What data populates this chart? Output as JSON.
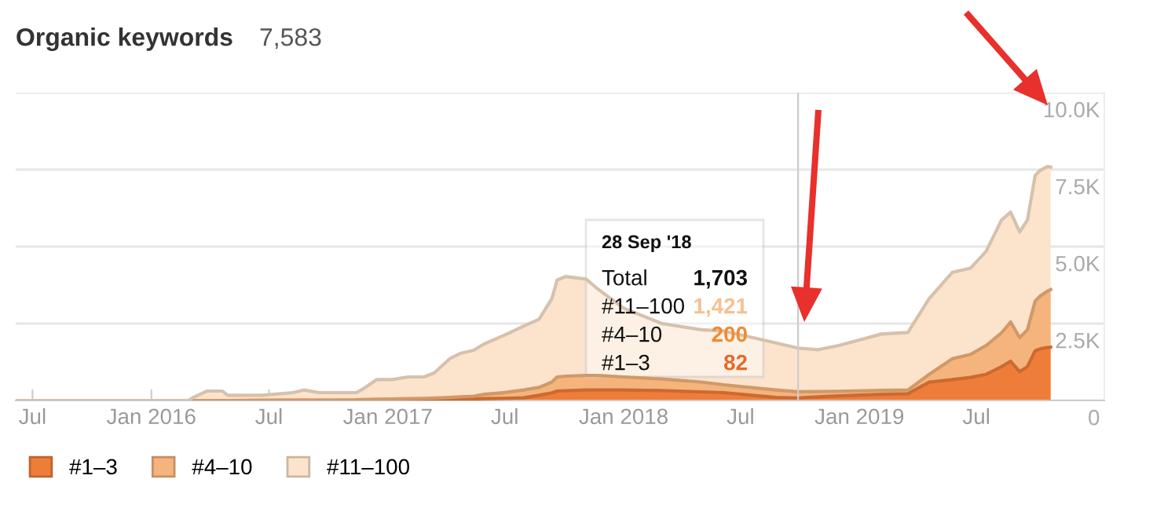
{
  "chart_data": {
    "type": "area",
    "stacked": true,
    "title": "Organic keywords",
    "subtitle": "7,583",
    "x": [
      "2015-06-05",
      "2016-02-27",
      "2016-03-06",
      "2016-03-27",
      "2016-04-20",
      "2016-04-28",
      "2016-06-20",
      "2016-08-07",
      "2016-08-24",
      "2016-09-17",
      "2016-11-13",
      "2016-11-21",
      "2016-12-15",
      "2017-01-08",
      "2017-02-02",
      "2017-02-26",
      "2017-03-14",
      "2017-04-07",
      "2017-04-23",
      "2017-05-14",
      "2017-05-30",
      "2017-07-01",
      "2017-07-30",
      "2017-08-23",
      "2017-09-12",
      "2017-09-20",
      "2017-10-03",
      "2017-11-04",
      "2017-11-20",
      "2018-01-01",
      "2018-03-01",
      "2018-05-01",
      "2018-06-05",
      "2018-08-25",
      "2018-09-28",
      "2018-10-29",
      "2018-11-30",
      "2019-02-04",
      "2019-03-17",
      "2019-04-19",
      "2019-05-25",
      "2019-06-22",
      "2019-07-16",
      "2019-08-09",
      "2019-08-23",
      "2019-09-06",
      "2019-09-18",
      "2019-09-30",
      "2019-10-08",
      "2019-10-19",
      "2019-10-24"
    ],
    "series": [
      {
        "name": "#1–3",
        "color": "#ef7d3a",
        "values": [
          0,
          0,
          0,
          0,
          0,
          0,
          0,
          0,
          0,
          0,
          5,
          5,
          10,
          10,
          15,
          20,
          25,
          30,
          40,
          50,
          60,
          70,
          85,
          170,
          250,
          306,
          320,
          340,
          340,
          340,
          320,
          280,
          255,
          100,
          82,
          120,
          150,
          200,
          221,
          595,
          680,
          750,
          850,
          1100,
          1275,
          935,
          1100,
          1615,
          1680,
          1720,
          1734
        ]
      },
      {
        "name": "#4–10",
        "color": "#f5b47c",
        "values": [
          0,
          0,
          0,
          0,
          0,
          0,
          10,
          15,
          15,
          20,
          20,
          25,
          30,
          40,
          45,
          50,
          55,
          70,
          80,
          90,
          140,
          190,
          255,
          255,
          350,
          459,
          470,
          476,
          476,
          425,
          380,
          320,
          255,
          240,
          200,
          169,
          150,
          130,
          119,
          255,
          680,
          750,
          935,
          1100,
          1275,
          1105,
          1200,
          1615,
          1720,
          1830,
          1870
        ]
      },
      {
        "name": "#11–100",
        "color": "#fce3cc",
        "values": [
          0,
          0,
          100,
          306,
          306,
          170,
          160,
          240,
          325,
          235,
          230,
          310,
          640,
          630,
          705,
          695,
          820,
          1260,
          1410,
          1492,
          1636,
          1865,
          2074,
          2210,
          2715,
          3145,
          3239,
          3128,
          2839,
          2235,
          1800,
          1700,
          1750,
          1530,
          1421,
          1361,
          1485,
          1829,
          1870,
          2465,
          2805,
          2800,
          3060,
          3665,
          3570,
          3434,
          3565,
          4080,
          4080,
          4050,
          3979
        ]
      }
    ],
    "xlim": [
      "2015-06-05",
      "2020-01-15"
    ],
    "xticks": [
      {
        "value": "2015-07-01",
        "label": "Jul"
      },
      {
        "value": "2016-01-01",
        "label": "Jan 2016"
      },
      {
        "value": "2016-07-01",
        "label": "Jul"
      },
      {
        "value": "2017-01-01",
        "label": "Jan 2017"
      },
      {
        "value": "2017-07-01",
        "label": "Jul"
      },
      {
        "value": "2018-01-01",
        "label": "Jan 2018"
      },
      {
        "value": "2018-07-01",
        "label": "Jul"
      },
      {
        "value": "2019-01-01",
        "label": "Jan 2019"
      },
      {
        "value": "2019-07-01",
        "label": "Jul"
      }
    ],
    "ylim": [
      0,
      10000
    ],
    "yticks": [
      0,
      {
        "value": 2500,
        "label": "2.5K"
      },
      {
        "value": 5000,
        "label": "5.0K"
      },
      {
        "value": 7500,
        "label": "7.5K"
      },
      {
        "value": 10000,
        "label": "10.0K"
      }
    ],
    "ref_lines": [
      {
        "axis": "x",
        "value": "2018-09-28",
        "color": "#cccccc"
      }
    ],
    "annotations": [
      "28 Sep '18",
      "Total",
      "1,703",
      "#11–100",
      "1,421",
      "#4–10",
      "200",
      "#1–3",
      "82"
    ],
    "grid": "y",
    "legend": "bottom left"
  }
}
